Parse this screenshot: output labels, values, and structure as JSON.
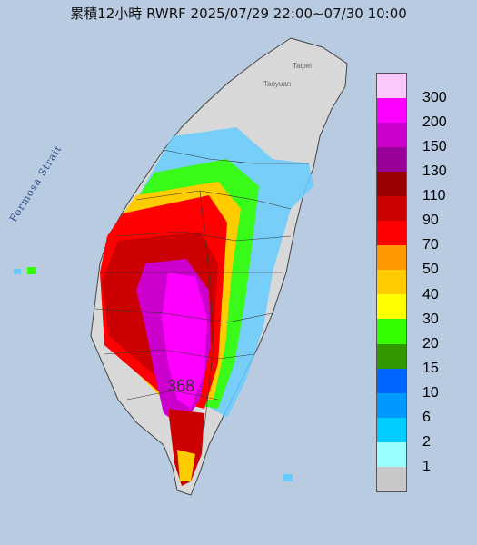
{
  "title": "累積12小時 RWRF 2025/07/29 22:00~07/30 10:00",
  "max_value": "368",
  "strait_label": "Formosa Strait",
  "cities": {
    "taipei": "Taipei",
    "taoyuan": "Taoyuan"
  },
  "legend": {
    "levels": [
      "300",
      "200",
      "150",
      "130",
      "110",
      "90",
      "70",
      "50",
      "40",
      "30",
      "20",
      "15",
      "10",
      "6",
      "2",
      "1"
    ],
    "colors": [
      "#fdc9fd",
      "#ff00ff",
      "#cc00cc",
      "#990099",
      "#990000",
      "#cc0000",
      "#ff0000",
      "#ff9900",
      "#ffcc00",
      "#ffff00",
      "#33ff00",
      "#339900",
      "#0066ff",
      "#0099ff",
      "#00ccff",
      "#99ffff",
      "#c8c8c8"
    ]
  },
  "colors": {
    "sea": "#b9cbe0",
    "land": "#d8d8d8"
  }
}
